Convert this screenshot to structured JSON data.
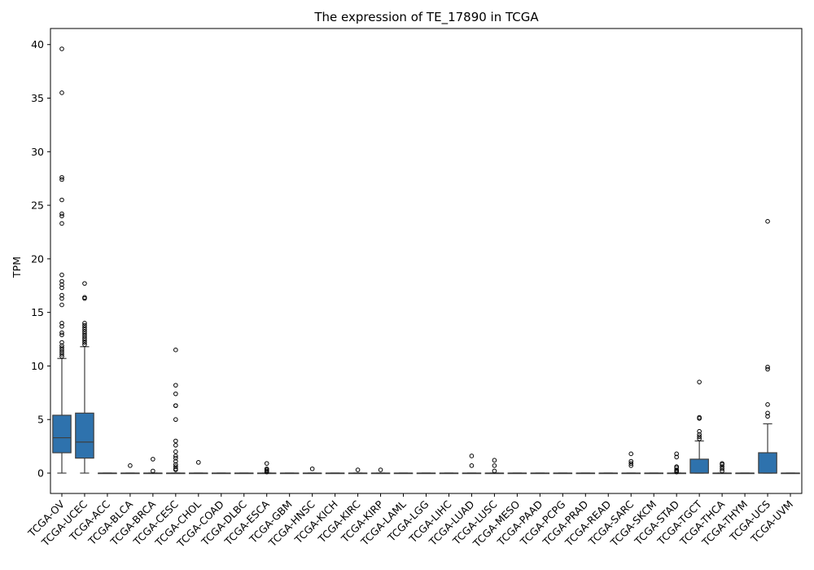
{
  "chart_data": {
    "type": "box",
    "title": "The expression of TE_17890 in TCGA",
    "xlabel": "",
    "ylabel": "TPM",
    "ylim": [
      -1.9,
      41.5
    ],
    "yticks": [
      0,
      5,
      10,
      15,
      20,
      25,
      30,
      35,
      40
    ],
    "box_color": "#2e72ad",
    "grid": false,
    "categories": [
      "TCGA-OV",
      "TCGA-UCEC",
      "TCGA-ACC",
      "TCGA-BLCA",
      "TCGA-BRCA",
      "TCGA-CESC",
      "TCGA-CHOL",
      "TCGA-COAD",
      "TCGA-DLBC",
      "TCGA-ESCA",
      "TCGA-GBM",
      "TCGA-HNSC",
      "TCGA-KICH",
      "TCGA-KIRC",
      "TCGA-KIRP",
      "TCGA-LAML",
      "TCGA-LGG",
      "TCGA-LIHC",
      "TCGA-LUAD",
      "TCGA-LUSC",
      "TCGA-MESO",
      "TCGA-PAAD",
      "TCGA-PCPG",
      "TCGA-PRAD",
      "TCGA-READ",
      "TCGA-SARC",
      "TCGA-SKCM",
      "TCGA-STAD",
      "TCGA-TGCT",
      "TCGA-THCA",
      "TCGA-THYM",
      "TCGA-UCS",
      "TCGA-UVM"
    ],
    "boxes": [
      {
        "q1": 1.9,
        "median": 3.3,
        "q3": 5.4,
        "whisker_low": 0,
        "whisker_high": 10.7,
        "outliers": [
          10.9,
          11.1,
          11.3,
          11.5,
          11.7,
          11.9,
          12.2,
          12.9,
          13.1,
          13.7,
          14.0,
          15.7,
          16.3,
          16.6,
          17.3,
          17.6,
          17.9,
          18.5,
          23.3,
          24.0,
          24.2,
          25.5,
          27.4,
          27.6,
          35.5,
          39.6
        ]
      },
      {
        "q1": 1.4,
        "median": 2.9,
        "q3": 5.6,
        "whisker_low": 0,
        "whisker_high": 11.8,
        "outliers": [
          12.0,
          12.2,
          12.4,
          12.6,
          12.8,
          13.0,
          13.2,
          13.4,
          13.6,
          13.8,
          14.0,
          16.3,
          16.4,
          17.7
        ]
      },
      {
        "q1": 0,
        "median": 0,
        "q3": 0,
        "whisker_low": 0,
        "whisker_high": 0,
        "outliers": []
      },
      {
        "q1": 0,
        "median": 0,
        "q3": 0,
        "whisker_low": 0,
        "whisker_high": 0,
        "outliers": [
          0.7
        ]
      },
      {
        "q1": 0,
        "median": 0,
        "q3": 0,
        "whisker_low": 0,
        "whisker_high": 0,
        "outliers": [
          0.2,
          1.3
        ]
      },
      {
        "q1": 0,
        "median": 0,
        "q3": 0,
        "whisker_low": 0,
        "whisker_high": 0,
        "outliers": [
          0.3,
          0.4,
          0.6,
          0.8,
          1.1,
          1.4,
          1.6,
          2.0,
          2.6,
          3.0,
          5.0,
          6.3,
          6.3,
          7.4,
          8.2,
          11.5
        ]
      },
      {
        "q1": 0,
        "median": 0,
        "q3": 0,
        "whisker_low": 0,
        "whisker_high": 0,
        "outliers": [
          1.0
        ]
      },
      {
        "q1": 0,
        "median": 0,
        "q3": 0,
        "whisker_low": 0,
        "whisker_high": 0,
        "outliers": []
      },
      {
        "q1": 0,
        "median": 0,
        "q3": 0,
        "whisker_low": 0,
        "whisker_high": 0,
        "outliers": []
      },
      {
        "q1": 0,
        "median": 0,
        "q3": 0,
        "whisker_low": 0,
        "whisker_high": 0,
        "outliers": [
          0.1,
          0.2,
          0.3,
          0.4,
          0.9
        ]
      },
      {
        "q1": 0,
        "median": 0,
        "q3": 0,
        "whisker_low": 0,
        "whisker_high": 0,
        "outliers": []
      },
      {
        "q1": 0,
        "median": 0,
        "q3": 0,
        "whisker_low": 0,
        "whisker_high": 0,
        "outliers": [
          0.4
        ]
      },
      {
        "q1": 0,
        "median": 0,
        "q3": 0,
        "whisker_low": 0,
        "whisker_high": 0,
        "outliers": []
      },
      {
        "q1": 0,
        "median": 0,
        "q3": 0,
        "whisker_low": 0,
        "whisker_high": 0,
        "outliers": [
          0.3
        ]
      },
      {
        "q1": 0,
        "median": 0,
        "q3": 0,
        "whisker_low": 0,
        "whisker_high": 0,
        "outliers": [
          0.3
        ]
      },
      {
        "q1": 0,
        "median": 0,
        "q3": 0,
        "whisker_low": 0,
        "whisker_high": 0,
        "outliers": []
      },
      {
        "q1": 0,
        "median": 0,
        "q3": 0,
        "whisker_low": 0,
        "whisker_high": 0,
        "outliers": []
      },
      {
        "q1": 0,
        "median": 0,
        "q3": 0,
        "whisker_low": 0,
        "whisker_high": 0,
        "outliers": []
      },
      {
        "q1": 0,
        "median": 0,
        "q3": 0,
        "whisker_low": 0,
        "whisker_high": 0,
        "outliers": [
          0.7,
          1.6
        ]
      },
      {
        "q1": 0,
        "median": 0,
        "q3": 0,
        "whisker_low": 0,
        "whisker_high": 0,
        "outliers": [
          0.2,
          0.7,
          1.2
        ]
      },
      {
        "q1": 0,
        "median": 0,
        "q3": 0,
        "whisker_low": 0,
        "whisker_high": 0,
        "outliers": []
      },
      {
        "q1": 0,
        "median": 0,
        "q3": 0,
        "whisker_low": 0,
        "whisker_high": 0,
        "outliers": []
      },
      {
        "q1": 0,
        "median": 0,
        "q3": 0,
        "whisker_low": 0,
        "whisker_high": 0,
        "outliers": []
      },
      {
        "q1": 0,
        "median": 0,
        "q3": 0,
        "whisker_low": 0,
        "whisker_high": 0,
        "outliers": []
      },
      {
        "q1": 0,
        "median": 0,
        "q3": 0,
        "whisker_low": 0,
        "whisker_high": 0,
        "outliers": []
      },
      {
        "q1": 0,
        "median": 0,
        "q3": 0,
        "whisker_low": 0,
        "whisker_high": 0,
        "outliers": [
          0.7,
          0.9,
          1.1,
          1.8
        ]
      },
      {
        "q1": 0,
        "median": 0,
        "q3": 0,
        "whisker_low": 0,
        "whisker_high": 0,
        "outliers": []
      },
      {
        "q1": 0,
        "median": 0,
        "q3": 0,
        "whisker_low": 0,
        "whisker_high": 0,
        "outliers": [
          0.1,
          0.2,
          0.3,
          0.5,
          0.6,
          1.5,
          1.8
        ]
      },
      {
        "q1": 0,
        "median": 0,
        "q3": 1.3,
        "whisker_low": 0,
        "whisker_high": 3.0,
        "outliers": [
          3.2,
          3.4,
          3.6,
          3.9,
          5.1,
          5.2,
          8.5
        ]
      },
      {
        "q1": 0,
        "median": 0,
        "q3": 0,
        "whisker_low": 0,
        "whisker_high": 0,
        "outliers": [
          0.2,
          0.4,
          0.6,
          0.8,
          0.9
        ]
      },
      {
        "q1": 0,
        "median": 0,
        "q3": 0,
        "whisker_low": 0,
        "whisker_high": 0,
        "outliers": []
      },
      {
        "q1": 0,
        "median": 0,
        "q3": 1.9,
        "whisker_low": 0,
        "whisker_high": 4.6,
        "outliers": [
          5.3,
          5.6,
          6.4,
          9.7,
          9.9,
          23.5
        ]
      },
      {
        "q1": 0,
        "median": 0,
        "q3": 0,
        "whisker_low": 0,
        "whisker_high": 0,
        "outliers": []
      }
    ]
  }
}
